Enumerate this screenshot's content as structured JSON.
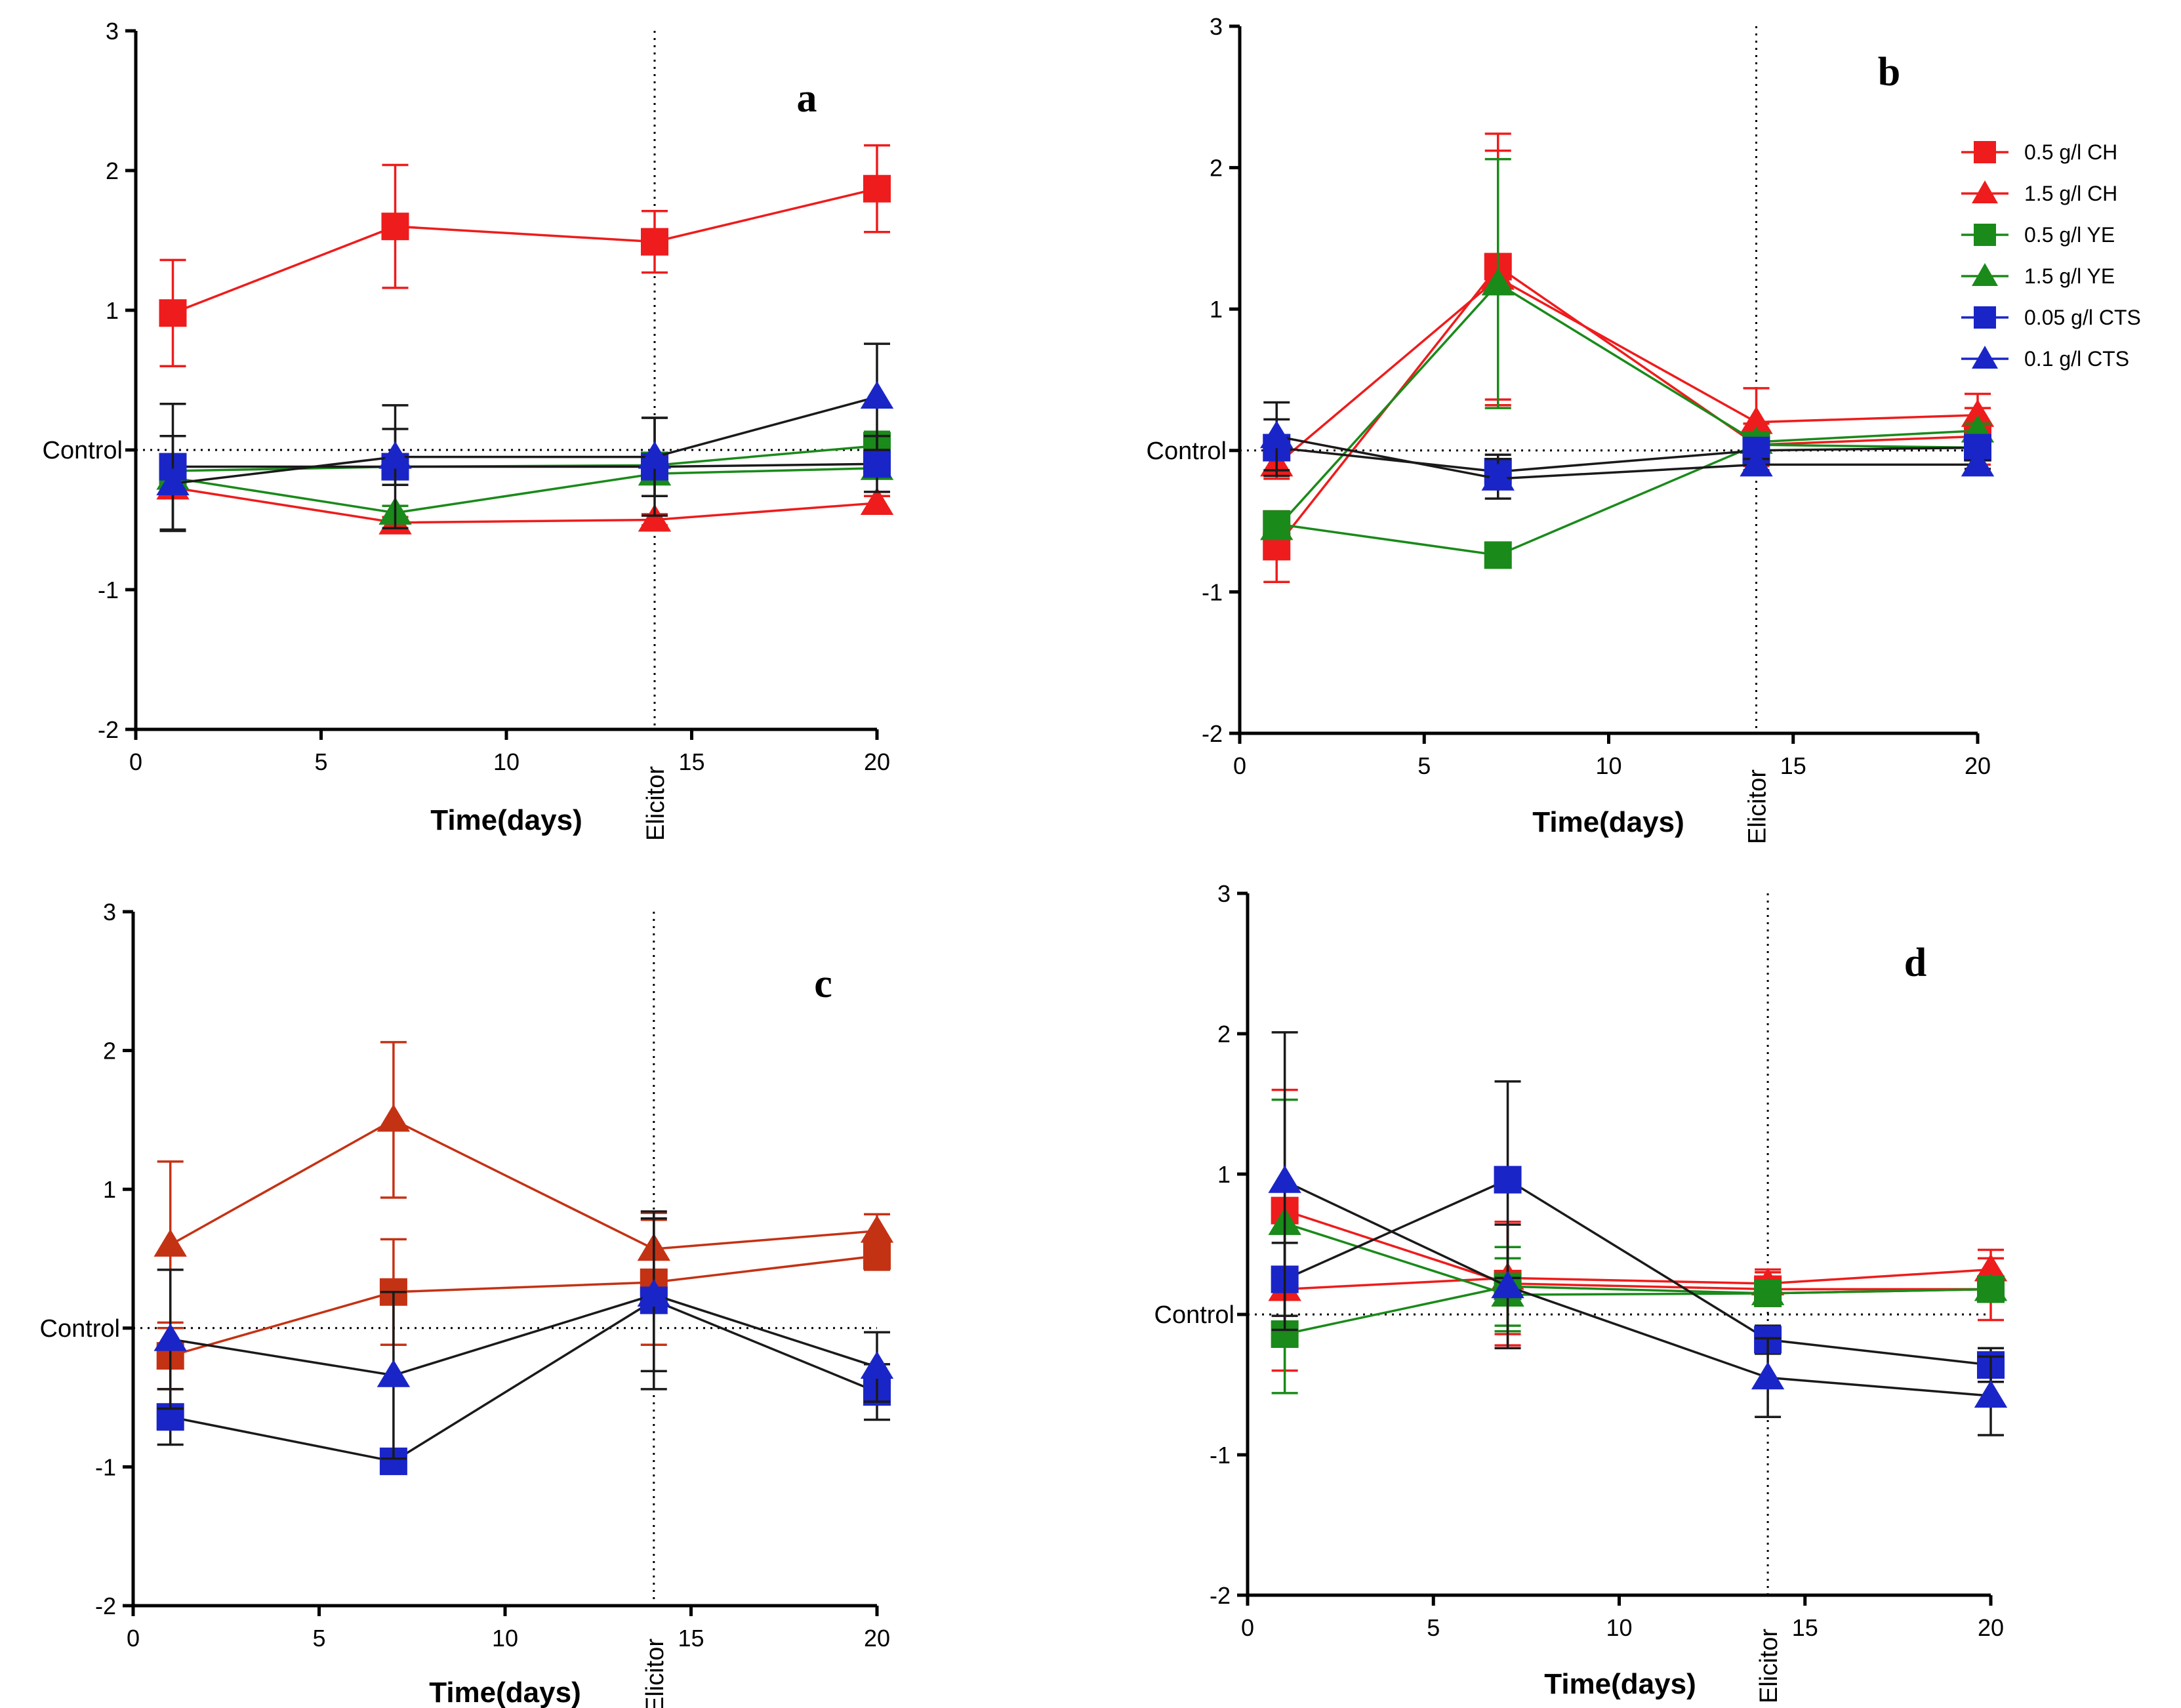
{
  "colors": {
    "CH": "#ee1c1c",
    "YE": "#1a8a1a",
    "CTS": "#1a25c8",
    "CTS_line": "#1a1a1a",
    "c_red_line": "#c43214"
  },
  "legend": [
    {
      "label": "0.5 g/l CH",
      "color": "CH",
      "marker": "square"
    },
    {
      "label": "1.5 g/l CH",
      "color": "CH",
      "marker": "triangle"
    },
    {
      "label": "0.5 g/l YE",
      "color": "YE",
      "marker": "square"
    },
    {
      "label": "1.5 g/l YE",
      "color": "YE",
      "marker": "triangle"
    },
    {
      "label": "0.05 g/l CTS",
      "color": "CTS",
      "marker": "square"
    },
    {
      "label": "0.1 g/l CTS",
      "color": "CTS",
      "marker": "triangle"
    }
  ],
  "chart_data": [
    {
      "type": "line",
      "panel": "a",
      "xlabel": "Time(days)",
      "reference_label": "Control",
      "vline_label": "Elicitor",
      "vline_x": 14,
      "xlim": [
        0,
        20
      ],
      "ylim": [
        -2,
        3
      ],
      "xticks": [
        0,
        5,
        10,
        15,
        20
      ],
      "yticks": [
        -2,
        -1,
        1,
        2,
        3
      ],
      "x": [
        1,
        7,
        14,
        20
      ],
      "series": [
        {
          "name": "0.5 g/l CH",
          "color": "CH",
          "marker": "square",
          "values": [
            0.98,
            1.6,
            1.49,
            1.87
          ],
          "err": [
            0.38,
            0.44,
            0.22,
            0.31
          ]
        },
        {
          "name": "1.5 g/l CH",
          "color": "CH",
          "marker": "triangle",
          "values": [
            -0.27,
            -0.52,
            -0.5,
            -0.38
          ],
          "err": [
            0.06,
            0.04,
            0.04,
            0.05
          ]
        },
        {
          "name": "0.5 g/l YE",
          "color": "YE",
          "marker": "square",
          "values": [
            -0.15,
            -0.12,
            -0.11,
            0.03
          ],
          "err": [
            0.1,
            0.08,
            0.08,
            0.1
          ]
        },
        {
          "name": "1.5 g/l YE",
          "color": "YE",
          "marker": "triangle",
          "values": [
            -0.2,
            -0.45,
            -0.17,
            -0.13
          ],
          "err": [
            0.06,
            0.05,
            0.06,
            0.05
          ]
        },
        {
          "name": "0.05 g/l CTS",
          "color": "CTS",
          "marker": "square",
          "values": [
            -0.12,
            -0.12,
            -0.12,
            -0.1
          ],
          "err": [
            0.45,
            0.44,
            0.35,
            0.2
          ]
        },
        {
          "name": "0.1 g/l CTS",
          "color": "CTS",
          "marker": "triangle",
          "values": [
            -0.24,
            -0.05,
            -0.05,
            0.38
          ],
          "err": [
            0.34,
            0.2,
            0.28,
            0.38
          ]
        }
      ]
    },
    {
      "type": "line",
      "panel": "b",
      "xlabel": "Time(days)",
      "reference_label": "Control",
      "vline_label": "Elicitor",
      "vline_x": 14,
      "xlim": [
        0,
        20
      ],
      "ylim": [
        -2,
        3
      ],
      "xticks": [
        0,
        5,
        10,
        15,
        20
      ],
      "yticks": [
        -2,
        -1,
        1,
        2,
        3
      ],
      "x": [
        1,
        7,
        14,
        20
      ],
      "series": [
        {
          "name": "0.5 g/l CH",
          "color": "CH",
          "marker": "square",
          "values": [
            -0.68,
            1.3,
            0.04,
            0.1
          ],
          "err": [
            0.25,
            0.94,
            0.15,
            0.2
          ]
        },
        {
          "name": "1.5 g/l CH",
          "color": "CH",
          "marker": "triangle",
          "values": [
            -0.1,
            1.22,
            0.2,
            0.25
          ],
          "err": [
            0.1,
            0.9,
            0.24,
            0.15
          ]
        },
        {
          "name": "0.5 g/l YE",
          "color": "YE",
          "marker": "square",
          "values": [
            -0.52,
            -0.74,
            0.04,
            0.02
          ],
          "err": [
            0.05,
            0.04,
            0.05,
            0.06
          ]
        },
        {
          "name": "1.5 g/l YE",
          "color": "YE",
          "marker": "triangle",
          "values": [
            -0.55,
            1.18,
            0.06,
            0.14
          ],
          "err": [
            0.05,
            0.88,
            0.05,
            0.05
          ]
        },
        {
          "name": "0.05 g/l CTS",
          "color": "CTS",
          "marker": "square",
          "values": [
            0.02,
            -0.15,
            0.0,
            0.02
          ],
          "err": [
            0.2,
            0.12,
            0.05,
            0.05
          ]
        },
        {
          "name": "0.1 g/l CTS",
          "color": "CTS",
          "marker": "triangle",
          "values": [
            0.1,
            -0.2,
            -0.1,
            -0.1
          ],
          "err": [
            0.24,
            0.14,
            0.04,
            0.03
          ]
        }
      ]
    },
    {
      "type": "line",
      "panel": "c",
      "xlabel": "Time(days)",
      "reference_label": "Control",
      "vline_label": "Elicitor",
      "vline_x": 14,
      "xlim": [
        0,
        20
      ],
      "ylim": [
        -2,
        3
      ],
      "xticks": [
        0,
        5,
        10,
        15,
        20
      ],
      "yticks": [
        -2,
        -1,
        1,
        2,
        3
      ],
      "x": [
        1,
        7,
        14,
        20
      ],
      "series": [
        {
          "name": "0.5 g/l CH",
          "color": "c_red",
          "marker": "square",
          "values": [
            -0.2,
            0.26,
            0.33,
            0.52
          ],
          "err": [
            0.24,
            0.38,
            0.45,
            0.1
          ]
        },
        {
          "name": "1.5 g/l CH",
          "color": "c_red",
          "marker": "triangle",
          "values": [
            0.6,
            1.5,
            0.57,
            0.7
          ],
          "err": [
            0.6,
            0.56,
            0.26,
            0.12
          ]
        },
        {
          "name": "0.05 g/l CTS",
          "color": "CTS",
          "marker": "square",
          "values": [
            -0.64,
            -0.96,
            0.2,
            -0.46
          ],
          "err": [
            0.2,
            0.05,
            0.64,
            0.2
          ]
        },
        {
          "name": "0.1 g/l CTS",
          "color": "CTS",
          "marker": "triangle",
          "values": [
            -0.08,
            -0.34,
            0.24,
            -0.28
          ],
          "err": [
            0.5,
            0.6,
            0.55,
            0.25
          ]
        }
      ]
    },
    {
      "type": "line",
      "panel": "d",
      "xlabel": "Time(days)",
      "reference_label": "Control",
      "vline_label": "Elicitor",
      "vline_x": 14,
      "xlim": [
        0,
        20
      ],
      "ylim": [
        -2,
        3
      ],
      "xticks": [
        0,
        5,
        10,
        15,
        20
      ],
      "yticks": [
        -2,
        -1,
        1,
        2,
        3
      ],
      "x": [
        1,
        7,
        14,
        20
      ],
      "series": [
        {
          "name": "0.5 g/l CH",
          "color": "CH",
          "marker": "square",
          "values": [
            0.74,
            0.22,
            0.18,
            0.18
          ],
          "err": [
            0.86,
            0.44,
            0.12,
            0.22
          ]
        },
        {
          "name": "1.5 g/l CH",
          "color": "CH",
          "marker": "triangle",
          "values": [
            0.18,
            0.26,
            0.22,
            0.32
          ],
          "err": [
            0.58,
            0.4,
            0.1,
            0.14
          ]
        },
        {
          "name": "0.5 g/l YE",
          "color": "YE",
          "marker": "square",
          "values": [
            -0.14,
            0.2,
            0.15,
            0.18
          ],
          "err": [
            0.42,
            0.28,
            0.08,
            0.08
          ]
        },
        {
          "name": "1.5 g/l YE",
          "color": "YE",
          "marker": "triangle",
          "values": [
            0.65,
            0.14,
            0.15,
            0.18
          ],
          "err": [
            0.88,
            0.26,
            0.06,
            0.06
          ]
        },
        {
          "name": "0.05 g/l CTS",
          "color": "CTS",
          "marker": "square",
          "values": [
            0.25,
            0.96,
            -0.18,
            -0.36
          ],
          "err": [
            0.26,
            0.7,
            0.1,
            0.12
          ]
        },
        {
          "name": "0.1 g/l CTS",
          "color": "CTS",
          "marker": "triangle",
          "values": [
            0.95,
            0.2,
            -0.45,
            -0.58
          ],
          "err": [
            1.06,
            0.44,
            0.28,
            0.28
          ]
        }
      ]
    }
  ]
}
